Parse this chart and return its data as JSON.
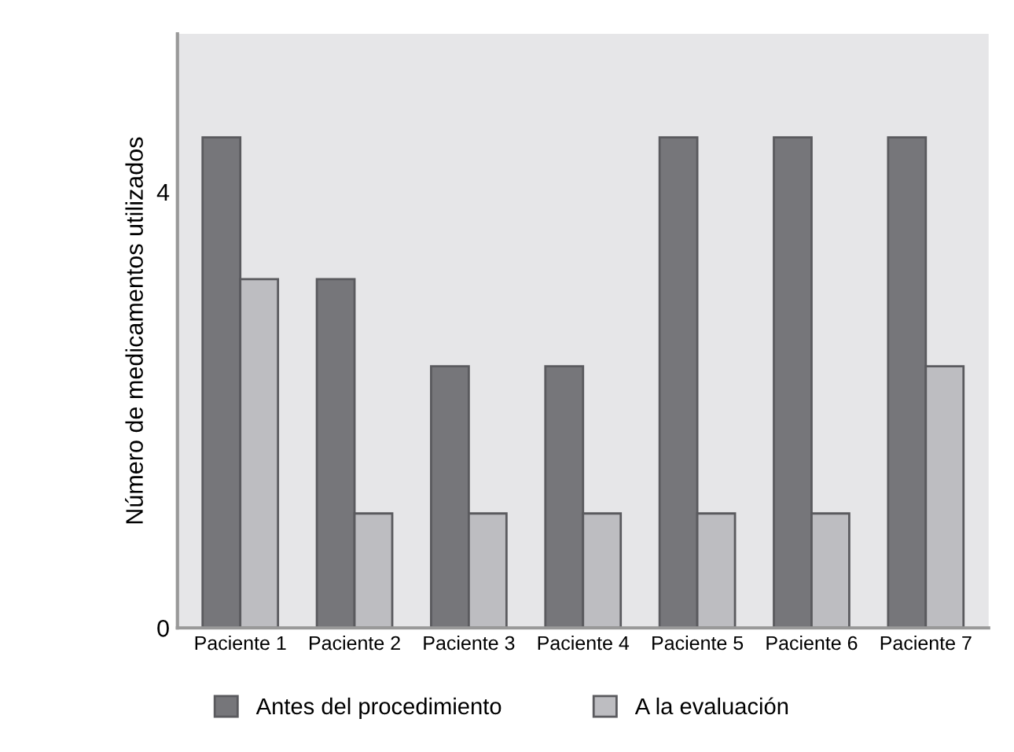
{
  "chart_data": {
    "type": "bar",
    "ylabel": "Número de medicamentos utilizados",
    "categories": [
      "Paciente 1",
      "Paciente 2",
      "Paciente 3",
      "Paciente 4",
      "Paciente 5",
      "Paciente 6",
      "Paciente 7"
    ],
    "series": [
      {
        "name": "Antes del procedimiento",
        "color": "#76767a",
        "values": [
          4.5,
          3.2,
          2.4,
          2.4,
          4.5,
          4.5,
          4.5
        ]
      },
      {
        "name": "A la evaluación",
        "color": "#bdbdc1",
        "values": [
          3.2,
          1.05,
          1.05,
          1.05,
          1.05,
          1.05,
          2.4
        ]
      }
    ],
    "ylim": [
      0,
      5.45
    ],
    "yticks": [
      0,
      4
    ],
    "grid": false,
    "legend": "bottom"
  }
}
